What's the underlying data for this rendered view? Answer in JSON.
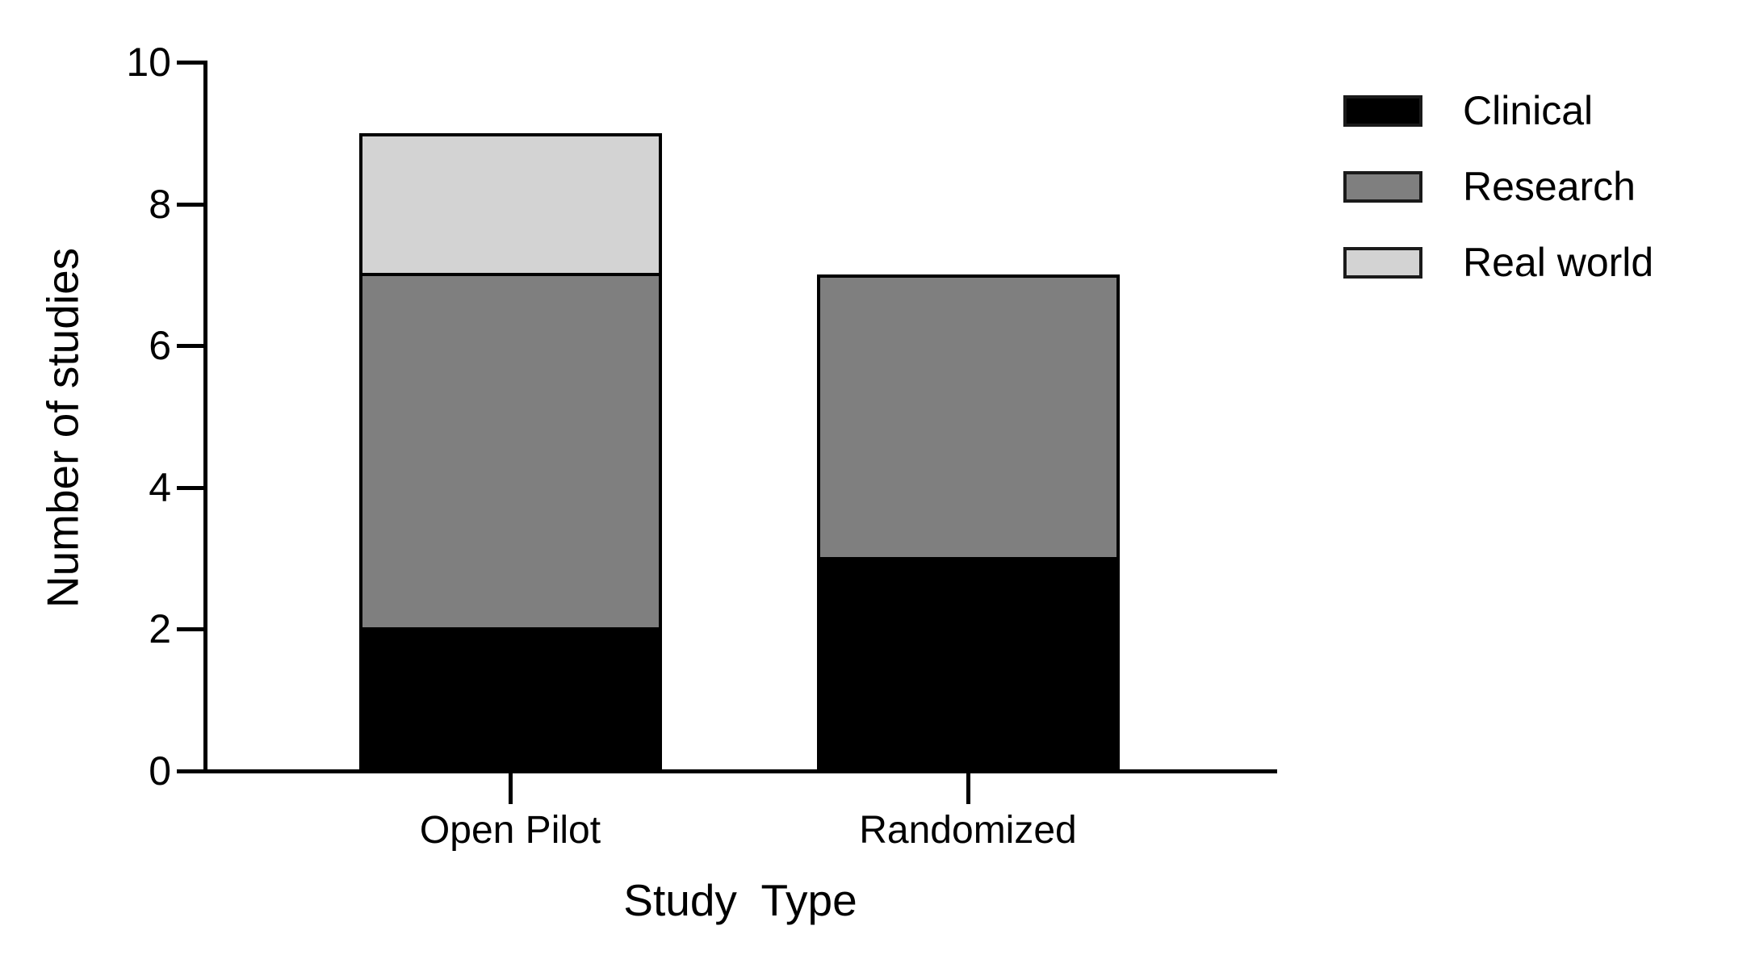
{
  "figure": {
    "y_axis_title": "Number of studies",
    "x_axis_title": "Study  Type"
  },
  "chart_data": {
    "type": "bar",
    "stacked": true,
    "title": "",
    "categories": [
      "Open Pilot",
      "Randomized"
    ],
    "series": [
      {
        "name": "Clinical",
        "color": "#000000",
        "values": [
          2,
          3
        ]
      },
      {
        "name": "Research",
        "color": "#7f7f7f",
        "values": [
          5,
          4
        ]
      },
      {
        "name": "Real world",
        "color": "#d3d3d3",
        "values": [
          2,
          0
        ]
      }
    ],
    "xlabel": "Study  Type",
    "ylabel": "Number of studies",
    "ylim": [
      0,
      10
    ],
    "yticks": [
      0,
      2,
      4,
      6,
      8,
      10
    ],
    "totals": [
      9,
      7
    ],
    "grid": false,
    "legend_position": "top-right",
    "axis_color": "#000000",
    "text_color": "#000000",
    "bar_outline_color": "#000000"
  }
}
